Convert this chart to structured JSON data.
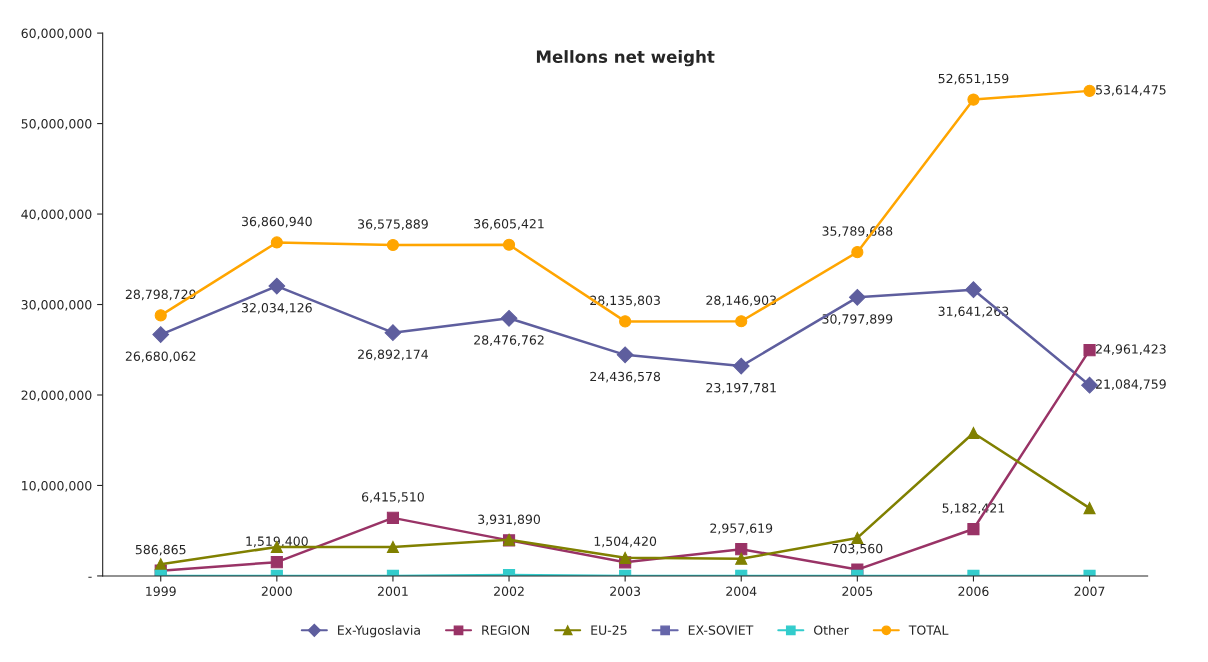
{
  "chart_data": {
    "type": "line",
    "title": "Mellons net weight",
    "categories": [
      "1999",
      "2000",
      "2001",
      "2002",
      "2003",
      "2004",
      "2005",
      "2006",
      "2007"
    ],
    "ylim": [
      0,
      60000000
    ],
    "yticks": [
      {
        "value": 0,
        "label": "-"
      },
      {
        "value": 10000000,
        "label": "10,000,000"
      },
      {
        "value": 20000000,
        "label": "20,000,000"
      },
      {
        "value": 30000000,
        "label": "30,000,000"
      },
      {
        "value": 40000000,
        "label": "40,000,000"
      },
      {
        "value": 50000000,
        "label": "50,000,000"
      },
      {
        "value": 60000000,
        "label": "60,000,000"
      }
    ],
    "grid": false,
    "legend": "bottom",
    "series": [
      {
        "name": "Ex-Yugoslavia",
        "color": "#5e5e9e",
        "marker": "diamond",
        "values": [
          26680062,
          32034126,
          26892174,
          28476762,
          24436578,
          23197781,
          30797899,
          31641263,
          21084759
        ],
        "value_labels": [
          "26,680,062",
          "32,034,126",
          "26,892,174",
          "28,476,762",
          "24,436,578",
          "23,197,781",
          "30,797,899",
          "31,641,263",
          "21,084,759"
        ]
      },
      {
        "name": "REGION",
        "color": "#993366",
        "marker": "square",
        "values": [
          586865,
          1519400,
          6415510,
          3931890,
          1504420,
          2957619,
          703560,
          5182421,
          24961423
        ],
        "value_labels": [
          "586,865",
          "1,519,400",
          "6,415,510",
          "3,931,890",
          "1,504,420",
          "2,957,619",
          "703,560",
          "5,182,421",
          "24,961,423"
        ]
      },
      {
        "name": "EU-25",
        "color": "#808000",
        "marker": "triangle",
        "values": [
          1300000,
          3200000,
          3200000,
          4000000,
          2000000,
          1900000,
          4200000,
          15800000,
          7500000
        ]
      },
      {
        "name": "EX-SOVIET",
        "color": "#6666aa",
        "marker": "square",
        "values": [
          null,
          null,
          null,
          null,
          null,
          null,
          null,
          null,
          null
        ]
      },
      {
        "name": "Other",
        "color": "#33cccc",
        "marker": "square",
        "values": [
          0,
          0,
          0,
          100000,
          0,
          0,
          0,
          0,
          0
        ]
      },
      {
        "name": "TOTAL",
        "color": "#ffa500",
        "marker": "circle",
        "values": [
          28798729,
          36860940,
          36575889,
          36605421,
          28135803,
          28146903,
          35789688,
          52651159,
          53614475
        ],
        "value_labels": [
          "28,798,729",
          "36,860,940",
          "36,575,889",
          "36,605,421",
          "28,135,803",
          "28,146,903",
          "35,789,688",
          "52,651,159",
          "53,614,475"
        ]
      }
    ]
  }
}
